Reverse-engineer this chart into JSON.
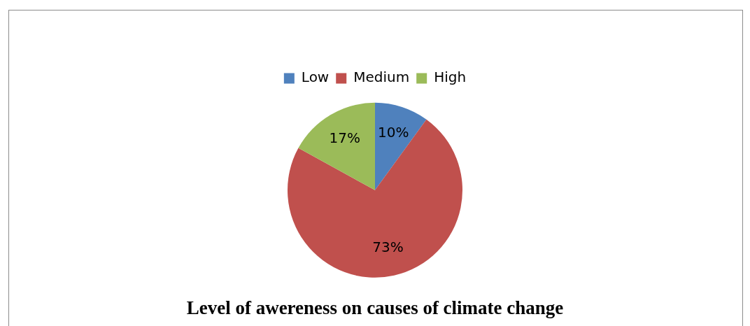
{
  "chart_data": {
    "type": "pie",
    "title": "Level of awereness on causes of climate change",
    "categories": [
      "Low",
      "Medium",
      "High"
    ],
    "values": [
      10,
      73,
      17
    ],
    "colors": [
      "#4f81bd",
      "#c0504d",
      "#9bbb59"
    ],
    "value_labels": [
      "10%",
      "73%",
      "17%"
    ],
    "legend": "top"
  }
}
